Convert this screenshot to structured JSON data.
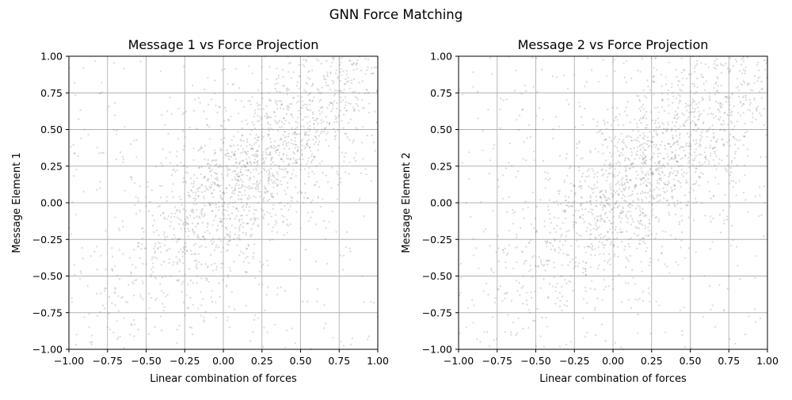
{
  "figure": {
    "suptitle": "GNN Force Matching"
  },
  "chart_data": [
    {
      "type": "scatter",
      "title": "Message 1 vs Force Projection",
      "xlabel": "Linear combination of forces",
      "ylabel": "Message Element 1",
      "xlim": [
        -1.0,
        1.0
      ],
      "ylim": [
        -1.0,
        1.0
      ],
      "xticks": [
        -1.0,
        -0.75,
        -0.5,
        -0.25,
        0.0,
        0.25,
        0.5,
        0.75,
        1.0
      ],
      "yticks": [
        -1.0,
        -0.75,
        -0.5,
        -0.25,
        0.0,
        0.25,
        0.5,
        0.75,
        1.0
      ],
      "xtick_labels": [
        "−1.00",
        "−0.75",
        "−0.50",
        "−0.25",
        "0.00",
        "0.25",
        "0.50",
        "0.75",
        "1.00"
      ],
      "ytick_labels": [
        "−1.00",
        "−0.75",
        "−0.50",
        "−0.25",
        "0.00",
        "0.25",
        "0.50",
        "0.75",
        "1.00"
      ],
      "grid": true,
      "marker_color": "#808080",
      "marker_alpha": 0.3,
      "approx_point_count": 2000,
      "trend": "positive correlation, points concentrated along the diagonal y ≈ x, densest near (0.4, 0.45)",
      "points": [
        [
          -0.95,
          -0.9
        ],
        [
          -0.9,
          -0.78
        ],
        [
          -0.85,
          -0.95
        ],
        [
          -0.82,
          -0.62
        ],
        [
          -0.78,
          -0.7
        ],
        [
          -0.75,
          -0.85
        ],
        [
          -0.72,
          -0.45
        ],
        [
          -0.7,
          -0.58
        ],
        [
          -0.68,
          -0.92
        ],
        [
          -0.65,
          -0.35
        ],
        [
          -0.62,
          -0.68
        ],
        [
          -0.6,
          -0.5
        ],
        [
          -0.58,
          -0.8
        ],
        [
          -0.55,
          -0.3
        ],
        [
          -0.52,
          -0.55
        ],
        [
          -0.5,
          -0.42
        ],
        [
          -0.48,
          -0.72
        ],
        [
          -0.45,
          -0.2
        ],
        [
          -0.43,
          -0.38
        ],
        [
          -0.4,
          -0.6
        ],
        [
          -0.38,
          -0.1
        ],
        [
          -0.36,
          -0.32
        ],
        [
          -0.34,
          -0.5
        ],
        [
          -0.32,
          -0.22
        ],
        [
          -0.3,
          -0.05
        ],
        [
          -0.28,
          -0.4
        ],
        [
          -0.26,
          -0.15
        ],
        [
          -0.24,
          -0.3
        ],
        [
          -0.22,
          0.05
        ],
        [
          -0.2,
          -0.18
        ],
        [
          -0.18,
          -0.35
        ],
        [
          -0.16,
          0.1
        ],
        [
          -0.14,
          -0.08
        ],
        [
          -0.12,
          -0.25
        ],
        [
          -0.1,
          0.15
        ],
        [
          -0.08,
          0.0
        ],
        [
          -0.06,
          -0.12
        ],
        [
          -0.04,
          0.2
        ],
        [
          -0.02,
          0.08
        ],
        [
          0.0,
          -0.05
        ],
        [
          0.02,
          0.25
        ],
        [
          0.04,
          0.12
        ],
        [
          0.06,
          0.0
        ],
        [
          0.08,
          0.3
        ],
        [
          0.1,
          0.18
        ],
        [
          0.12,
          0.05
        ],
        [
          0.14,
          0.35
        ],
        [
          0.16,
          0.22
        ],
        [
          0.18,
          0.1
        ],
        [
          0.2,
          0.4
        ],
        [
          0.22,
          0.28
        ],
        [
          0.24,
          0.15
        ],
        [
          0.26,
          0.45
        ],
        [
          0.28,
          0.33
        ],
        [
          0.3,
          0.2
        ],
        [
          0.32,
          0.5
        ],
        [
          0.34,
          0.38
        ],
        [
          0.36,
          0.25
        ],
        [
          0.38,
          0.55
        ],
        [
          0.4,
          0.42
        ],
        [
          0.42,
          0.3
        ],
        [
          0.44,
          0.6
        ],
        [
          0.46,
          0.48
        ],
        [
          0.48,
          0.35
        ],
        [
          0.5,
          0.65
        ],
        [
          0.52,
          0.52
        ],
        [
          0.54,
          0.4
        ],
        [
          0.56,
          0.7
        ],
        [
          0.58,
          0.58
        ],
        [
          0.6,
          0.45
        ],
        [
          0.62,
          0.75
        ],
        [
          0.64,
          0.62
        ],
        [
          0.66,
          0.5
        ],
        [
          0.68,
          0.8
        ],
        [
          0.7,
          0.68
        ],
        [
          0.72,
          0.55
        ],
        [
          0.74,
          0.85
        ],
        [
          0.76,
          0.72
        ],
        [
          0.78,
          0.6
        ],
        [
          0.8,
          0.9
        ],
        [
          0.82,
          0.78
        ],
        [
          0.84,
          0.65
        ],
        [
          0.86,
          0.95
        ],
        [
          0.88,
          0.82
        ],
        [
          0.9,
          0.7
        ],
        [
          0.92,
          0.88
        ],
        [
          0.94,
          0.75
        ],
        [
          0.96,
          0.92
        ],
        [
          -0.6,
          0.4
        ],
        [
          -0.8,
          0.1
        ],
        [
          -0.4,
          0.6
        ],
        [
          0.6,
          -0.4
        ],
        [
          0.8,
          -0.2
        ],
        [
          0.4,
          -0.6
        ],
        [
          -0.9,
          0.5
        ],
        [
          0.9,
          -0.5
        ],
        [
          -0.2,
          0.8
        ],
        [
          0.2,
          -0.8
        ],
        [
          -0.7,
          -0.1
        ],
        [
          0.7,
          0.1
        ]
      ]
    },
    {
      "type": "scatter",
      "title": "Message 2 vs Force Projection",
      "xlabel": "Linear combination of forces",
      "ylabel": "Message Element 2",
      "xlim": [
        -1.0,
        1.0
      ],
      "ylim": [
        -1.0,
        1.0
      ],
      "xticks": [
        -1.0,
        -0.75,
        -0.5,
        -0.25,
        0.0,
        0.25,
        0.5,
        0.75,
        1.0
      ],
      "yticks": [
        -1.0,
        -0.75,
        -0.5,
        -0.25,
        0.0,
        0.25,
        0.5,
        0.75,
        1.0
      ],
      "xtick_labels": [
        "−1.00",
        "−0.75",
        "−0.50",
        "−0.25",
        "0.00",
        "0.25",
        "0.50",
        "0.75",
        "1.00"
      ],
      "ytick_labels": [
        "−1.00",
        "−0.75",
        "−0.50",
        "−0.25",
        "0.00",
        "0.25",
        "0.50",
        "0.75",
        "1.00"
      ],
      "grid": true,
      "marker_color": "#808080",
      "marker_alpha": 0.3,
      "approx_point_count": 2000,
      "trend": "positive correlation, points concentrated along the diagonal y ≈ x, densest near (0.35, 0.45)",
      "points": [
        [
          -0.95,
          -0.85
        ],
        [
          -0.9,
          -0.7
        ],
        [
          -0.86,
          -0.95
        ],
        [
          -0.82,
          -0.55
        ],
        [
          -0.78,
          -0.78
        ],
        [
          -0.74,
          -0.4
        ],
        [
          -0.7,
          -0.62
        ],
        [
          -0.66,
          -0.9
        ],
        [
          -0.62,
          -0.3
        ],
        [
          -0.58,
          -0.5
        ],
        [
          -0.54,
          -0.75
        ],
        [
          -0.5,
          -0.2
        ],
        [
          -0.46,
          -0.42
        ],
        [
          -0.42,
          -0.65
        ],
        [
          -0.38,
          -0.1
        ],
        [
          -0.34,
          -0.32
        ],
        [
          -0.3,
          -0.55
        ],
        [
          -0.26,
          0.0
        ],
        [
          -0.22,
          -0.22
        ],
        [
          -0.18,
          -0.45
        ],
        [
          -0.14,
          0.1
        ],
        [
          -0.1,
          -0.12
        ],
        [
          -0.06,
          -0.35
        ],
        [
          -0.02,
          0.2
        ],
        [
          0.02,
          0.0
        ],
        [
          0.06,
          -0.2
        ],
        [
          0.1,
          0.3
        ],
        [
          0.14,
          0.1
        ],
        [
          0.18,
          -0.08
        ],
        [
          0.22,
          0.4
        ],
        [
          0.26,
          0.2
        ],
        [
          0.3,
          0.05
        ],
        [
          0.34,
          0.5
        ],
        [
          0.38,
          0.3
        ],
        [
          0.42,
          0.15
        ],
        [
          0.46,
          0.6
        ],
        [
          0.5,
          0.4
        ],
        [
          0.54,
          0.25
        ],
        [
          0.58,
          0.7
        ],
        [
          0.62,
          0.5
        ],
        [
          0.66,
          0.35
        ],
        [
          0.7,
          0.8
        ],
        [
          0.74,
          0.6
        ],
        [
          0.78,
          0.45
        ],
        [
          0.82,
          0.9
        ],
        [
          0.86,
          0.7
        ],
        [
          0.9,
          0.55
        ],
        [
          0.94,
          0.85
        ],
        [
          -0.5,
          0.5
        ],
        [
          -0.8,
          0.2
        ],
        [
          0.5,
          -0.5
        ],
        [
          0.8,
          -0.3
        ],
        [
          -0.3,
          0.7
        ],
        [
          0.3,
          -0.7
        ],
        [
          -0.95,
          0.0
        ],
        [
          0.95,
          0.05
        ],
        [
          -0.1,
          0.55
        ],
        [
          0.1,
          -0.55
        ],
        [
          -0.65,
          -0.05
        ],
        [
          0.65,
          0.05
        ]
      ]
    }
  ]
}
